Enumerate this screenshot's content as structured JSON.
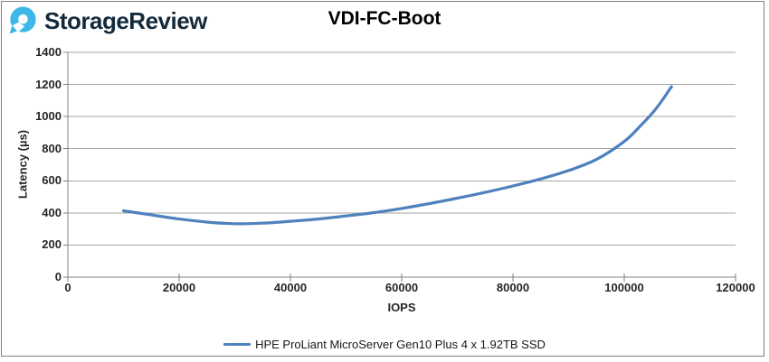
{
  "header": {
    "brand": {
      "name": "StorageReview",
      "icon": "storagereview-logo-icon",
      "icon_color": "#3DB7E8",
      "text_color": "#142A3B"
    },
    "title": "VDI-FC-Boot"
  },
  "chart_data": {
    "type": "line",
    "title": "VDI-FC-Boot",
    "xlabel": "IOPS",
    "ylabel": "Latency (µs)",
    "xlim": [
      0,
      120000
    ],
    "ylim": [
      0,
      1400
    ],
    "x_ticks": [
      0,
      20000,
      40000,
      60000,
      80000,
      100000,
      120000
    ],
    "y_ticks": [
      0,
      200,
      400,
      600,
      800,
      1000,
      1200,
      1400
    ],
    "grid": "horizontal",
    "grid_color": "#A6A6A6",
    "axis_color": "#808080",
    "legend_position": "bottom",
    "series": [
      {
        "name": "HPE ProLiant MicroServer Gen10 Plus 4 x 1.92TB SSD",
        "color": "#4F81BD",
        "points": [
          [
            10000,
            413
          ],
          [
            15000,
            388
          ],
          [
            20000,
            362
          ],
          [
            25000,
            343
          ],
          [
            30000,
            333
          ],
          [
            35000,
            336
          ],
          [
            40000,
            348
          ],
          [
            45000,
            362
          ],
          [
            50000,
            381
          ],
          [
            55000,
            402
          ],
          [
            60000,
            428
          ],
          [
            65000,
            458
          ],
          [
            70000,
            492
          ],
          [
            75000,
            528
          ],
          [
            80000,
            568
          ],
          [
            85000,
            612
          ],
          [
            90000,
            664
          ],
          [
            95000,
            733
          ],
          [
            100000,
            845
          ],
          [
            103000,
            945
          ],
          [
            105500,
            1040
          ],
          [
            107200,
            1120
          ],
          [
            108200,
            1172
          ],
          [
            108500,
            1186
          ]
        ]
      }
    ]
  }
}
